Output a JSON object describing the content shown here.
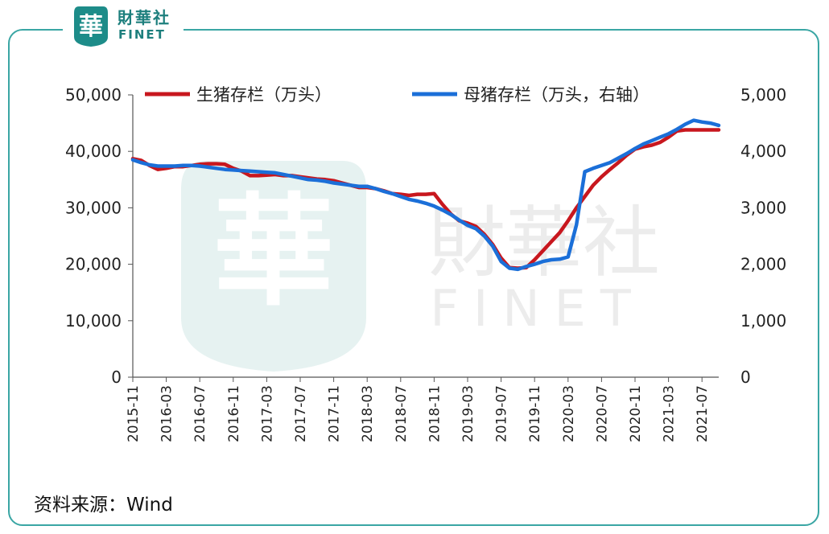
{
  "brand": {
    "seal_text": "華",
    "name_cn": "財華社",
    "name_en": "FINET",
    "watermark_cn": "財華社",
    "watermark_en": "FINET"
  },
  "source_text": "资料来源：Wind",
  "chart_data": {
    "type": "line",
    "title": "",
    "xlabel": "",
    "x": [
      "2015-11",
      "2015-12",
      "2016-01",
      "2016-02",
      "2016-03",
      "2016-04",
      "2016-05",
      "2016-06",
      "2016-07",
      "2016-08",
      "2016-09",
      "2016-10",
      "2016-11",
      "2016-12",
      "2017-01",
      "2017-02",
      "2017-03",
      "2017-04",
      "2017-05",
      "2017-06",
      "2017-07",
      "2017-08",
      "2017-09",
      "2017-10",
      "2017-11",
      "2017-12",
      "2018-01",
      "2018-02",
      "2018-03",
      "2018-04",
      "2018-05",
      "2018-06",
      "2018-07",
      "2018-08",
      "2018-09",
      "2018-10",
      "2018-11",
      "2018-12",
      "2019-01",
      "2019-02",
      "2019-03",
      "2019-04",
      "2019-05",
      "2019-06",
      "2019-07",
      "2019-08",
      "2019-09",
      "2019-10",
      "2019-11",
      "2019-12",
      "2020-01",
      "2020-02",
      "2020-03",
      "2020-04",
      "2020-05",
      "2020-06",
      "2020-07",
      "2020-08",
      "2020-09",
      "2020-10",
      "2020-11",
      "2020-12",
      "2021-01",
      "2021-02",
      "2021-03",
      "2021-04",
      "2021-05",
      "2021-06",
      "2021-07",
      "2021-08",
      "2021-09"
    ],
    "x_tick_labels": [
      "2015-11",
      "2016-03",
      "2016-07",
      "2016-11",
      "2017-03",
      "2017-07",
      "2017-11",
      "2018-03",
      "2018-07",
      "2018-11",
      "2019-03",
      "2019-07",
      "2019-11",
      "2020-03",
      "2020-07",
      "2020-11",
      "2021-03",
      "2021-07"
    ],
    "left_axis": {
      "ylim": [
        0,
        50000
      ],
      "ticks": [
        "0",
        "10,000",
        "20,000",
        "30,000",
        "40,000",
        "50,000"
      ]
    },
    "right_axis": {
      "ylim": [
        0,
        5000
      ],
      "ticks": [
        "0",
        "1,000",
        "2,000",
        "3,000",
        "4,000",
        "5,000"
      ]
    },
    "grid": false,
    "legend_position": "top",
    "series": [
      {
        "name": "生猪存栏（万头）",
        "axis": "left",
        "color": "#c8171e",
        "values": [
          38700,
          38400,
          37500,
          36800,
          37000,
          37300,
          37300,
          37500,
          37700,
          37800,
          37800,
          37700,
          37000,
          36500,
          35700,
          35700,
          35800,
          35900,
          35700,
          35700,
          35500,
          35300,
          35100,
          35000,
          34800,
          34400,
          34000,
          33600,
          33600,
          33400,
          33000,
          32500,
          32400,
          32200,
          32400,
          32400,
          32500,
          30600,
          28900,
          27700,
          27300,
          26700,
          25300,
          23500,
          21100,
          19400,
          19300,
          19400,
          20800,
          22400,
          24000,
          25600,
          27700,
          30000,
          32000,
          34000,
          35500,
          36800,
          38000,
          39300,
          40400,
          40800,
          41100,
          41600,
          42500,
          43600,
          43800,
          43800,
          43800,
          43800,
          43800
        ]
      },
      {
        "name": "母猪存栏（万头，右轴）",
        "axis": "right",
        "color": "#1b6fd8",
        "values": [
          3850,
          3800,
          3760,
          3740,
          3740,
          3740,
          3750,
          3750,
          3740,
          3720,
          3700,
          3680,
          3670,
          3660,
          3650,
          3640,
          3630,
          3620,
          3590,
          3560,
          3530,
          3500,
          3490,
          3470,
          3440,
          3420,
          3400,
          3380,
          3380,
          3340,
          3290,
          3250,
          3200,
          3150,
          3120,
          3080,
          3030,
          2960,
          2880,
          2780,
          2690,
          2630,
          2500,
          2320,
          2050,
          1930,
          1910,
          1960,
          2000,
          2050,
          2080,
          2090,
          2130,
          2700,
          3640,
          3700,
          3750,
          3800,
          3880,
          3960,
          4050,
          4130,
          4190,
          4250,
          4310,
          4390,
          4480,
          4550,
          4520,
          4500,
          4460
        ]
      }
    ]
  }
}
